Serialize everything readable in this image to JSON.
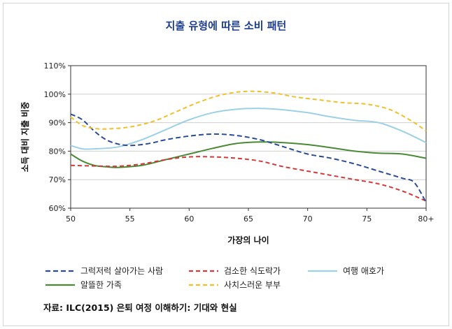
{
  "chart_data": {
    "type": "line",
    "title": "지출 유형에 따른 소비 패턴",
    "xlabel": "가장의 나이",
    "ylabel": "소득 대비 지출 비중",
    "x_ticks": [
      "50",
      "55",
      "60",
      "65",
      "70",
      "75",
      "80+"
    ],
    "y_ticks": [
      "60%",
      "70%",
      "80%",
      "90%",
      "100%",
      "110%"
    ],
    "xlim": [
      50,
      80
    ],
    "ylim": [
      60,
      110
    ],
    "grid": true,
    "legend_position": "bottom",
    "series": [
      {
        "name": "그럭저럭 살아가는 사람",
        "color": "#2a4a9a",
        "dash": "7,4",
        "points": [
          [
            50,
            93
          ],
          [
            51,
            91
          ],
          [
            52,
            87
          ],
          [
            53,
            84
          ],
          [
            54,
            82.5
          ],
          [
            55,
            82
          ],
          [
            56,
            82.3
          ],
          [
            57,
            83
          ],
          [
            58,
            84
          ],
          [
            60,
            85.3
          ],
          [
            62,
            86
          ],
          [
            64,
            85.5
          ],
          [
            66,
            84
          ],
          [
            68,
            81.5
          ],
          [
            70,
            79
          ],
          [
            72,
            77.5
          ],
          [
            74,
            75.5
          ],
          [
            76,
            73
          ],
          [
            78,
            70.5
          ],
          [
            79,
            69
          ],
          [
            80,
            62
          ]
        ]
      },
      {
        "name": "검소한 식도락가",
        "color": "#d23a3a",
        "dash": "6,4",
        "points": [
          [
            50,
            75
          ],
          [
            52,
            74.8
          ],
          [
            54,
            74.7
          ],
          [
            56,
            75.5
          ],
          [
            58,
            77
          ],
          [
            60,
            78
          ],
          [
            62,
            78
          ],
          [
            64,
            77.5
          ],
          [
            66,
            76.5
          ],
          [
            68,
            74.5
          ],
          [
            70,
            73
          ],
          [
            72,
            71.5
          ],
          [
            74,
            70
          ],
          [
            76,
            68.5
          ],
          [
            78,
            66
          ],
          [
            80,
            62.5
          ]
        ]
      },
      {
        "name": "여행 애호가",
        "color": "#9cd0e6",
        "dash": "",
        "points": [
          [
            50,
            82
          ],
          [
            51,
            80.8
          ],
          [
            52,
            80.8
          ],
          [
            54,
            81.5
          ],
          [
            56,
            84
          ],
          [
            58,
            87.5
          ],
          [
            60,
            91
          ],
          [
            62,
            93.5
          ],
          [
            64,
            94.7
          ],
          [
            66,
            95
          ],
          [
            68,
            94.5
          ],
          [
            70,
            93.5
          ],
          [
            72,
            92
          ],
          [
            74,
            90.8
          ],
          [
            76,
            90
          ],
          [
            78,
            87
          ],
          [
            80,
            83
          ]
        ]
      },
      {
        "name": "알뜰한 가족",
        "color": "#4a8a34",
        "dash": "",
        "points": [
          [
            50,
            79
          ],
          [
            51,
            76.5
          ],
          [
            52,
            75
          ],
          [
            53,
            74.5
          ],
          [
            54,
            74.3
          ],
          [
            56,
            75
          ],
          [
            58,
            77
          ],
          [
            60,
            79
          ],
          [
            62,
            81
          ],
          [
            64,
            82.7
          ],
          [
            66,
            83.2
          ],
          [
            68,
            83
          ],
          [
            70,
            82.3
          ],
          [
            72,
            81.2
          ],
          [
            74,
            80
          ],
          [
            76,
            79.3
          ],
          [
            78,
            79
          ],
          [
            80,
            77.5
          ]
        ]
      },
      {
        "name": "사치스러운 부부",
        "color": "#f0c02a",
        "dash": "6,4",
        "points": [
          [
            50,
            92
          ],
          [
            51,
            89
          ],
          [
            52,
            88
          ],
          [
            53,
            87.8
          ],
          [
            55,
            88.5
          ],
          [
            57,
            90.5
          ],
          [
            59,
            94
          ],
          [
            61,
            97.5
          ],
          [
            63,
            100
          ],
          [
            65,
            101
          ],
          [
            67,
            100.5
          ],
          [
            69,
            99
          ],
          [
            71,
            98
          ],
          [
            73,
            97
          ],
          [
            75,
            96.5
          ],
          [
            77,
            94.5
          ],
          [
            79,
            90
          ],
          [
            80,
            87
          ]
        ]
      }
    ]
  },
  "source": "자료: ILC(2015) 은퇴 여정 이해하기: 기대와 현실"
}
